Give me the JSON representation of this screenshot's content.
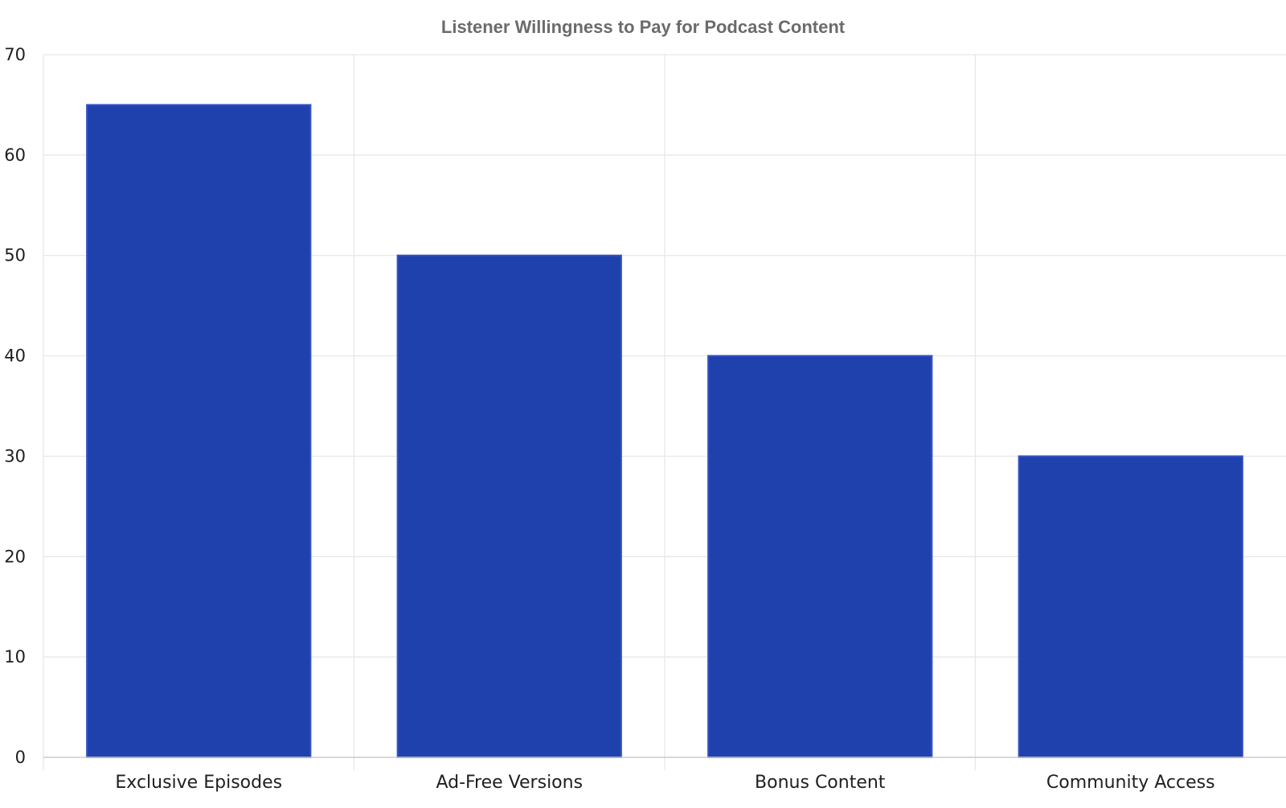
{
  "chart_data": {
    "type": "bar",
    "title": "Listener Willingness to Pay for Podcast Content",
    "xlabel": "",
    "ylabel": "",
    "categories": [
      "Exclusive Episodes",
      "Ad-Free Versions",
      "Bonus Content",
      "Community Access"
    ],
    "values": [
      65,
      50,
      40,
      30
    ],
    "ylim": [
      0,
      70
    ],
    "yticks": [
      0,
      10,
      20,
      30,
      40,
      50,
      60,
      70
    ],
    "grid": true,
    "legend": "none",
    "colors": {
      "bar_fill": "#1f41ad",
      "bar_stroke": "#3553c4",
      "grid": "#e6e6e6",
      "title": "#6b6b6b"
    }
  }
}
